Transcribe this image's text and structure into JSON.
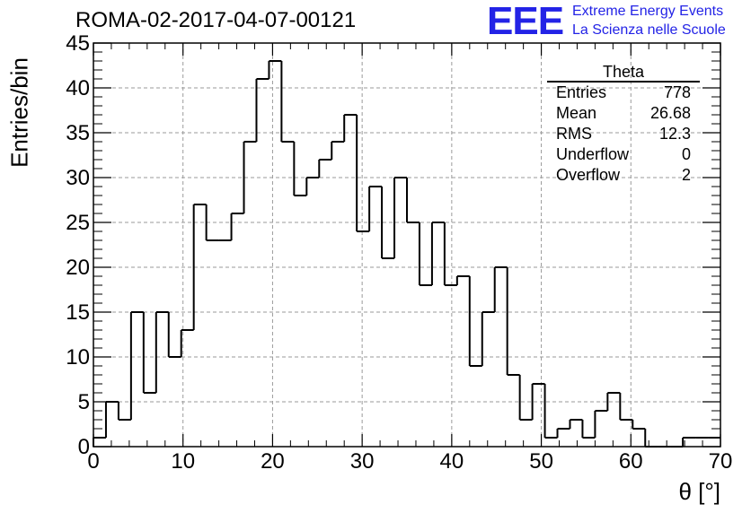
{
  "header": {
    "title": "ROMA-02-2017-04-07-00121",
    "logo_text": "EEE",
    "logo_line1": "Extreme Energy Events",
    "logo_line2": "La Scienza nelle Scuole"
  },
  "stats_box": {
    "title": "Theta",
    "rows": [
      {
        "label": "Entries",
        "value": "778"
      },
      {
        "label": "Mean",
        "value": "26.68"
      },
      {
        "label": "RMS",
        "value": "12.3"
      },
      {
        "label": "Underflow",
        "value": "0"
      },
      {
        "label": "Overflow",
        "value": "2"
      }
    ]
  },
  "chart_data": {
    "type": "bar",
    "style": "step-histogram",
    "xlabel": "θ [°]",
    "ylabel": "Entries/bin",
    "xlim": [
      0,
      70
    ],
    "ylim": [
      0,
      45
    ],
    "bin_width": 1.4,
    "x_ticks": [
      0,
      10,
      20,
      30,
      40,
      50,
      60,
      70
    ],
    "y_ticks": [
      0,
      5,
      10,
      15,
      20,
      25,
      30,
      35,
      40,
      45
    ],
    "grid": true,
    "values": [
      1,
      5,
      3,
      15,
      6,
      15,
      10,
      13,
      27,
      23,
      23,
      26,
      34,
      41,
      43,
      34,
      28,
      30,
      32,
      34,
      37,
      24,
      29,
      21,
      30,
      25,
      18,
      25,
      18,
      19,
      9,
      15,
      20,
      8,
      3,
      7,
      1,
      2,
      3,
      1,
      4,
      6,
      3,
      2,
      0,
      0,
      0,
      1,
      1,
      1
    ],
    "colors": {
      "line": "#000000",
      "grid": "#9a9a9a",
      "logo": "#2323e6"
    }
  }
}
